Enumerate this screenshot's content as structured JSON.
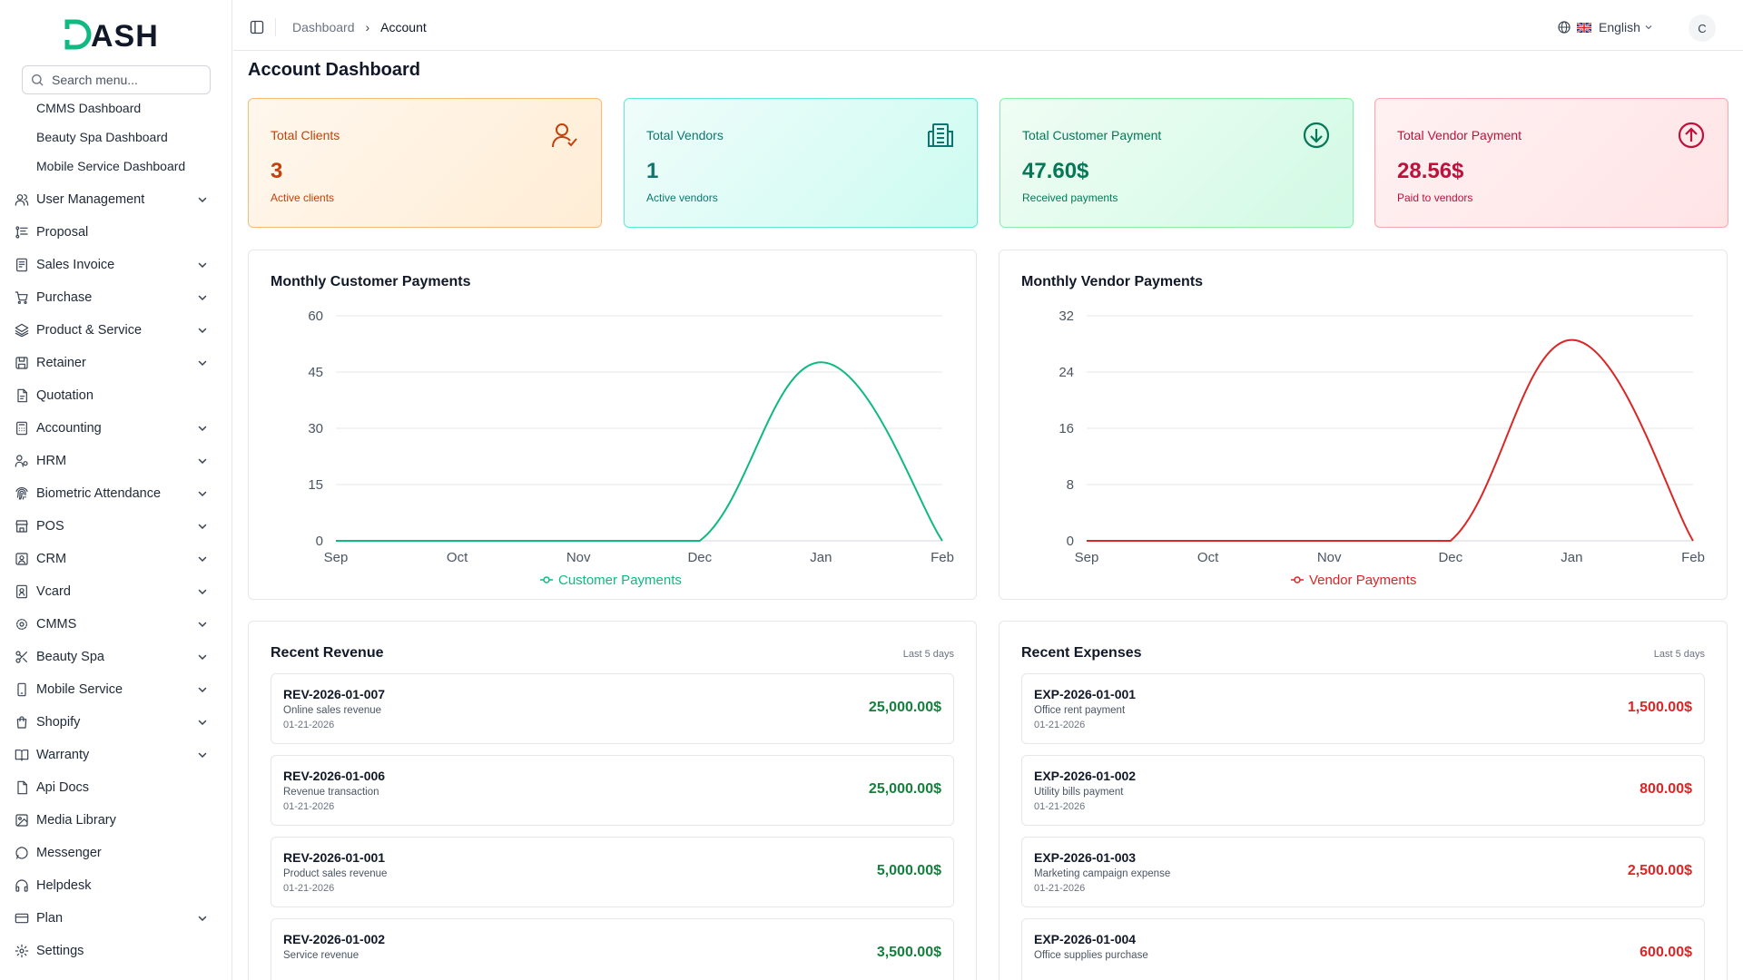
{
  "brand": {
    "logo_text": "DASH"
  },
  "search": {
    "placeholder": "Search menu..."
  },
  "sidebar": {
    "sub_items": [
      "CMMS Dashboard",
      "Beauty Spa Dashboard",
      "Mobile Service Dashboard"
    ],
    "items": [
      {
        "label": "User Management",
        "icon": "users-icon",
        "expandable": true
      },
      {
        "label": "Proposal",
        "icon": "proposal-icon",
        "expandable": false
      },
      {
        "label": "Sales Invoice",
        "icon": "invoice-icon",
        "expandable": true
      },
      {
        "label": "Purchase",
        "icon": "cart-icon",
        "expandable": true
      },
      {
        "label": "Product & Service",
        "icon": "layers-icon",
        "expandable": true
      },
      {
        "label": "Retainer",
        "icon": "retainer-icon",
        "expandable": true
      },
      {
        "label": "Quotation",
        "icon": "quotation-icon",
        "expandable": false
      },
      {
        "label": "Accounting",
        "icon": "calculator-icon",
        "expandable": true
      },
      {
        "label": "HRM",
        "icon": "hrm-icon",
        "expandable": true
      },
      {
        "label": "Biometric Attendance",
        "icon": "fingerprint-icon",
        "expandable": true
      },
      {
        "label": "POS",
        "icon": "store-icon",
        "expandable": true
      },
      {
        "label": "CRM",
        "icon": "contact-icon",
        "expandable": true
      },
      {
        "label": "Vcard",
        "icon": "vcard-icon",
        "expandable": true
      },
      {
        "label": "CMMS",
        "icon": "cog-icon",
        "expandable": true
      },
      {
        "label": "Beauty Spa",
        "icon": "scissors-icon",
        "expandable": true
      },
      {
        "label": "Mobile Service",
        "icon": "smartphone-icon",
        "expandable": true
      },
      {
        "label": "Shopify",
        "icon": "shopping-bag-icon",
        "expandable": true
      },
      {
        "label": "Warranty",
        "icon": "book-icon",
        "expandable": true
      },
      {
        "label": "Api Docs",
        "icon": "file-icon",
        "expandable": false
      },
      {
        "label": "Media Library",
        "icon": "image-icon",
        "expandable": false
      },
      {
        "label": "Messenger",
        "icon": "message-icon",
        "expandable": false
      },
      {
        "label": "Helpdesk",
        "icon": "headphones-icon",
        "expandable": false
      },
      {
        "label": "Plan",
        "icon": "card-icon",
        "expandable": true
      },
      {
        "label": "Settings",
        "icon": "gear-icon",
        "expandable": false
      }
    ]
  },
  "header": {
    "breadcrumb": [
      "Dashboard",
      "Account"
    ],
    "language": "English",
    "avatar_initial": "C"
  },
  "page": {
    "title": "Account Dashboard"
  },
  "stats": [
    {
      "label": "Total Clients",
      "value": "3",
      "sub": "Active clients",
      "icon": "user-check-icon"
    },
    {
      "label": "Total Vendors",
      "value": "1",
      "sub": "Active vendors",
      "icon": "building-icon"
    },
    {
      "label": "Total Customer Payment",
      "value": "47.60$",
      "sub": "Received payments",
      "icon": "arrow-down-circle-icon"
    },
    {
      "label": "Total Vendor Payment",
      "value": "28.56$",
      "sub": "Paid to vendors",
      "icon": "arrow-up-circle-icon"
    }
  ],
  "charts": {
    "customer": {
      "title": "Monthly Customer Payments"
    },
    "vendor": {
      "title": "Monthly Vendor Payments"
    }
  },
  "chart_data": [
    {
      "type": "line",
      "title": "Monthly Customer Payments",
      "categories": [
        "Sep",
        "Oct",
        "Nov",
        "Dec",
        "Jan",
        "Feb"
      ],
      "series": [
        {
          "name": "Customer Payments",
          "values": [
            0,
            0,
            0,
            0,
            47.6,
            0
          ],
          "color": "#10b981"
        }
      ],
      "yticks": [
        0,
        15,
        30,
        45,
        60
      ],
      "ylim": [
        0,
        60
      ],
      "grid": true,
      "legend": "bottom"
    },
    {
      "type": "line",
      "title": "Monthly Vendor Payments",
      "categories": [
        "Sep",
        "Oct",
        "Nov",
        "Dec",
        "Jan",
        "Feb"
      ],
      "series": [
        {
          "name": "Vendor Payments",
          "values": [
            0,
            0,
            0,
            0,
            28.56,
            0
          ],
          "color": "#dc2626"
        }
      ],
      "yticks": [
        0,
        8,
        16,
        24,
        32
      ],
      "ylim": [
        0,
        32
      ],
      "grid": true,
      "legend": "bottom"
    }
  ],
  "revenue": {
    "title": "Recent Revenue",
    "period": "Last 5 days",
    "entries": [
      {
        "ref": "REV-2026-01-007",
        "desc": "Online sales revenue",
        "date": "01-21-2026",
        "amount": "25,000.00$"
      },
      {
        "ref": "REV-2026-01-006",
        "desc": "Revenue transaction",
        "date": "01-21-2026",
        "amount": "25,000.00$"
      },
      {
        "ref": "REV-2026-01-001",
        "desc": "Product sales revenue",
        "date": "01-21-2026",
        "amount": "5,000.00$"
      },
      {
        "ref": "REV-2026-01-002",
        "desc": "Service revenue",
        "date": "",
        "amount": "3,500.00$"
      }
    ]
  },
  "expenses": {
    "title": "Recent Expenses",
    "period": "Last 5 days",
    "entries": [
      {
        "ref": "EXP-2026-01-001",
        "desc": "Office rent payment",
        "date": "01-21-2026",
        "amount": "1,500.00$"
      },
      {
        "ref": "EXP-2026-01-002",
        "desc": "Utility bills payment",
        "date": "01-21-2026",
        "amount": "800.00$"
      },
      {
        "ref": "EXP-2026-01-003",
        "desc": "Marketing campaign expense",
        "date": "01-21-2026",
        "amount": "2,500.00$"
      },
      {
        "ref": "EXP-2026-01-004",
        "desc": "Office supplies purchase",
        "date": "",
        "amount": "600.00$"
      }
    ]
  }
}
